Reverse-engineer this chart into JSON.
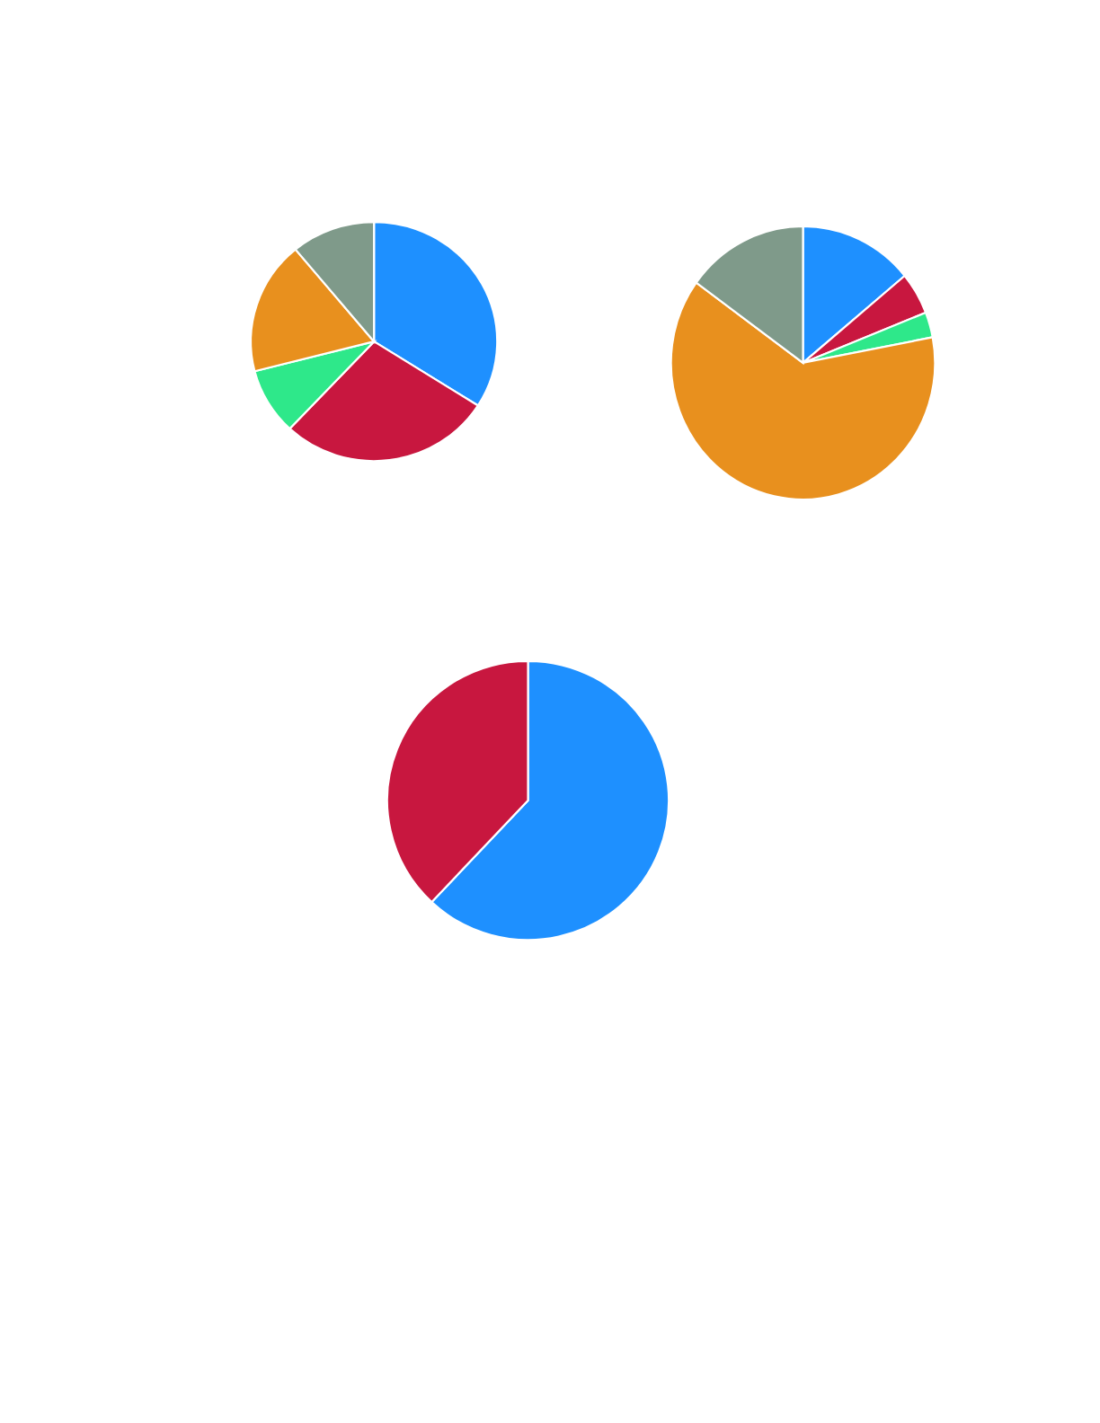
{
  "chart_data": [
    {
      "type": "pie",
      "categories": [
        null,
        null,
        null,
        null,
        null
      ],
      "values": [
        34,
        28,
        9,
        18,
        11
      ],
      "colors": [
        "#1e90ff",
        "#c8173f",
        "#2ee88a",
        "#e8901e",
        "#7f9a8a"
      ]
    },
    {
      "type": "pie",
      "categories": [
        null,
        null,
        null,
        null,
        null
      ],
      "values": [
        14,
        5,
        3,
        63,
        15
      ],
      "colors": [
        "#1e90ff",
        "#c8173f",
        "#2ee88a",
        "#e8901e",
        "#7f9a8a"
      ]
    },
    {
      "type": "pie",
      "categories": [
        null,
        null
      ],
      "values": [
        62,
        38
      ],
      "colors": [
        "#1e90ff",
        "#c8173f"
      ]
    }
  ]
}
